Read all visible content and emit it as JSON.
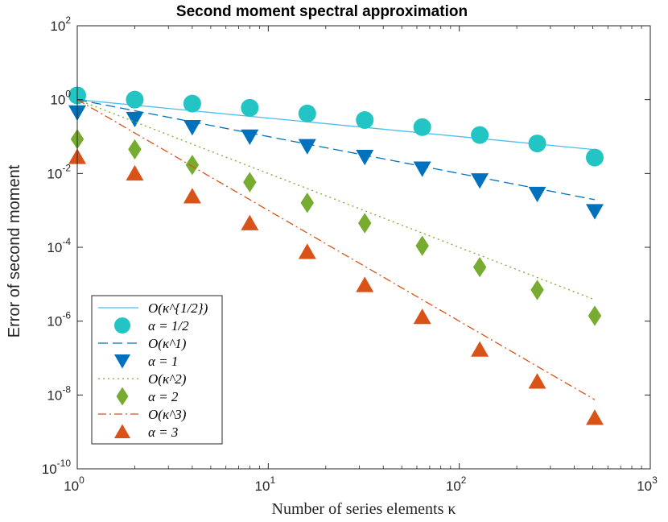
{
  "chart_data": {
    "type": "line",
    "title": "Second moment spectral approximation",
    "xlabel": "Number of series elements κ",
    "ylabel": "Error of second moment",
    "xscale": "log",
    "yscale": "log",
    "xlim": [
      1,
      1000
    ],
    "ylim": [
      1e-10,
      100
    ],
    "x_ticks": [
      {
        "value": 1,
        "base": "10",
        "exp": "0"
      },
      {
        "value": 10,
        "base": "10",
        "exp": "1"
      },
      {
        "value": 100,
        "base": "10",
        "exp": "2"
      },
      {
        "value": 1000,
        "base": "10",
        "exp": "3"
      }
    ],
    "y_ticks": [
      {
        "value": 1e-10,
        "base": "10",
        "exp": "-10"
      },
      {
        "value": 1e-08,
        "base": "10",
        "exp": "-8"
      },
      {
        "value": 1e-06,
        "base": "10",
        "exp": "-6"
      },
      {
        "value": 0.0001,
        "base": "10",
        "exp": "-4"
      },
      {
        "value": 0.01,
        "base": "10",
        "exp": "-2"
      },
      {
        "value": 1,
        "base": "10",
        "exp": "0"
      },
      {
        "value": 100,
        "base": "10",
        "exp": "2"
      }
    ],
    "legend_position": "bottom-left",
    "grid": false,
    "x": [
      1,
      2,
      4,
      8,
      16,
      32,
      64,
      128,
      256,
      512
    ],
    "series": [
      {
        "name": "O(κ^{1/2})",
        "kind": "reference-line",
        "style": "solid",
        "color": "#4DBEEE",
        "x": [
          1,
          512
        ],
        "values": [
          1.0,
          0.0442
        ]
      },
      {
        "name": "α = 1/2",
        "kind": "marker",
        "marker": "circle",
        "color": "#23C4C4",
        "values": [
          1.3,
          1.0,
          0.78,
          0.6,
          0.42,
          0.28,
          0.18,
          0.11,
          0.065,
          0.027
        ]
      },
      {
        "name": "O(κ^1)",
        "kind": "reference-line",
        "style": "dashed",
        "color": "#0072BD",
        "x": [
          1,
          512
        ],
        "values": [
          1.0,
          0.00195
        ]
      },
      {
        "name": "α = 1",
        "kind": "marker",
        "marker": "triangle-down",
        "color": "#0072BD",
        "values": [
          0.45,
          0.3,
          0.18,
          0.1,
          0.055,
          0.028,
          0.0135,
          0.0065,
          0.0028,
          0.00095
        ]
      },
      {
        "name": "O(κ^2)",
        "kind": "reference-line",
        "style": "dotted",
        "color": "#77AC30",
        "x": [
          1,
          512
        ],
        "values": [
          1.0,
          3.8e-06
        ]
      },
      {
        "name": "α = 2",
        "kind": "marker",
        "marker": "diamond",
        "color": "#77AC30",
        "values": [
          0.085,
          0.045,
          0.017,
          0.0058,
          0.0016,
          0.00045,
          0.00011,
          2.9e-05,
          7e-06,
          1.4e-06
        ]
      },
      {
        "name": "O(κ^3)",
        "kind": "reference-line",
        "style": "dashdot",
        "color": "#D95319",
        "x": [
          1,
          512
        ],
        "values": [
          1.0,
          7.45e-09
        ]
      },
      {
        "name": "α = 3",
        "kind": "marker",
        "marker": "triangle-up",
        "color": "#D95319",
        "values": [
          0.028,
          0.01,
          0.0024,
          0.00045,
          7.5e-05,
          9.5e-06,
          1.3e-06,
          1.7e-07,
          2.3e-08,
          2.4e-09
        ]
      }
    ]
  }
}
